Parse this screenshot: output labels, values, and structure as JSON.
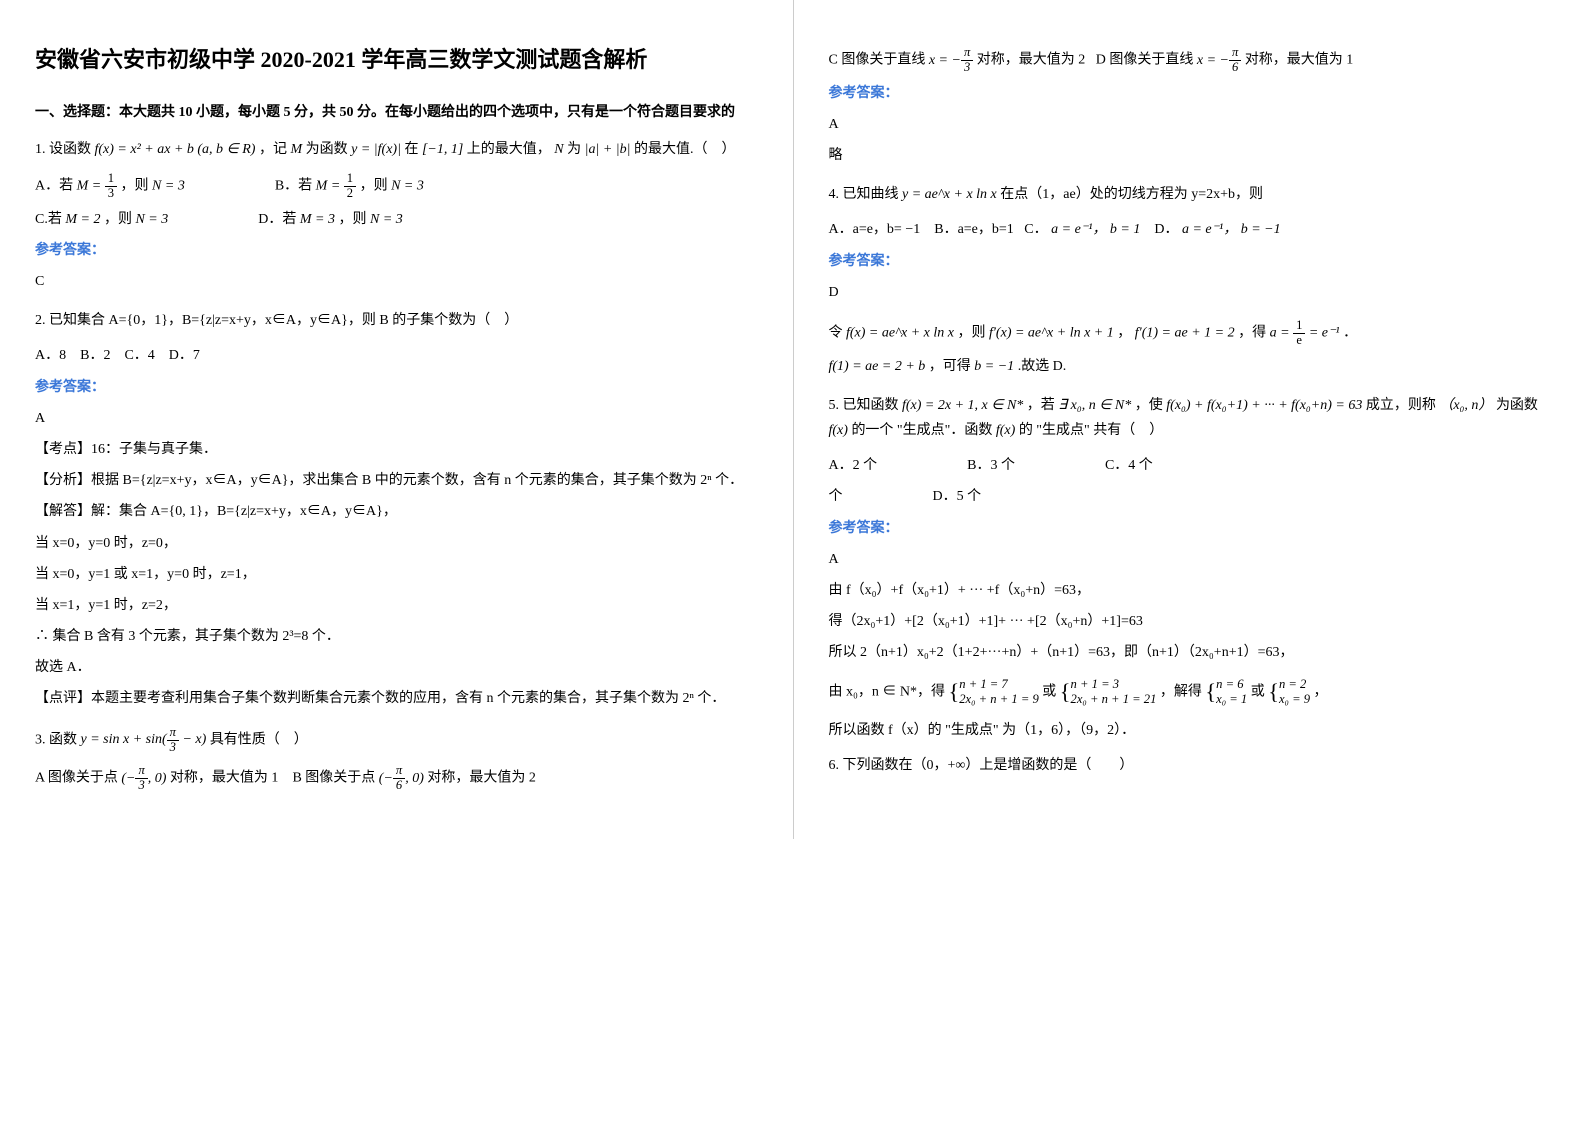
{
  "title": "安徽省六安市初级中学 2020-2021 学年高三数学文测试题含解析",
  "section1_head": "一、选择题：本大题共 10 小题，每小题 5 分，共 50 分。在每小题给出的四个选项中，只有是一个符合题目要求的",
  "q1": {
    "stem_pre": "1. 设函数",
    "fx": "f(x) = x² + ax + b (a, b ∈ R)",
    "stem_mid": "，记",
    "M": "M",
    "stem_mid2": " 为函数",
    "yfx": "y = |f(x)|",
    "stem_mid3": " 在",
    "interval": "[−1, 1]",
    "stem_mid4": " 上的最大值，",
    "N": "N",
    "stem_mid5": " 为",
    "ab": "|a| + |b|",
    "stem_end": " 的最大值.（　）",
    "optA_pre": "A．若",
    "optA_l": "M = ",
    "optA_num": "1",
    "optA_den": "3",
    "optA_r": "，则",
    "optA_N": "N = 3",
    "optB_pre": "B．若",
    "optB_l": "M = ",
    "optB_num": "1",
    "optB_den": "2",
    "optB_r": "，则",
    "optB_N": "N = 3",
    "optC_pre": "C.若",
    "optC_M": "M = 2",
    "optC_r": "，则",
    "optC_N": "N = 3",
    "optD_pre": "D．若",
    "optD_M": "M = 3",
    "optD_r": "，则",
    "optD_N": "N = 3",
    "answer": "C"
  },
  "q2": {
    "stem": "2. 已知集合 A={0，1}，B={z|z=x+y，x∈A，y∈A}，则 B 的子集个数为（　）",
    "opts": "A．8　B．2　C．4　D．7",
    "answer": "A",
    "kd": "【考点】16：子集与真子集．",
    "fx": "【分析】根据 B={z|z=x+y，x∈A，y∈A}，求出集合 B 中的元素个数，含有 n 个元素的集合，其子集个数为 2ⁿ 个．",
    "jd1": "【解答】解：集合 A={0, 1}，B={z|z=x+y，x∈A，y∈A}，",
    "jd2": "当 x=0，y=0 时，z=0，",
    "jd3": "当 x=0，y=1 或 x=1，y=0 时，z=1，",
    "jd4": "当 x=1，y=1 时，z=2，",
    "jd5": "∴ 集合 B 含有 3 个元素，其子集个数为 2³=8 个．",
    "jd6": "故选 A．",
    "dp": "【点评】本题主要考查利用集合子集个数判断集合元素个数的应用，含有 n 个元素的集合，其子集个数为 2ⁿ 个．"
  },
  "q3": {
    "stem_pre": "3. 函数",
    "y": "y = sin x + sin(",
    "pi_num": "π",
    "pi_den": "3",
    "y_end": " − x)",
    "stem_end": "具有性质（　）",
    "optA_pre": "A  图像关于点",
    "optA_pt": "(−",
    "optA_num": "π",
    "optA_den": "3",
    "optA_pt_end": ", 0)",
    "optA_end": " 对称，最大值为 1",
    "optB_pre": "B  图像关于点",
    "optB_pt": "(−",
    "optB_num": "π",
    "optB_den": "6",
    "optB_pt_end": ", 0)",
    "optB_end": " 对称，最大值为 2",
    "optC_pre": "C  图像关于直线",
    "optC_x": "x = −",
    "optC_num": "π",
    "optC_den": "3",
    "optC_end": " 对称，最大值为 2",
    "optD_pre": "D  图像关于直线",
    "optD_x": "x = −",
    "optD_num": "π",
    "optD_den": "6",
    "optD_end": " 对称，最大值为 1",
    "answer": "A",
    "lue": "略"
  },
  "q4": {
    "stem_pre": "4. 已知曲线",
    "y": "y = ae^x + x ln x",
    "stem_mid": " 在点（1，ae）处的切线方程为 y=2x+b，则",
    "optA": "A．a=e，b= −1",
    "optB": "B．a=e，b=1",
    "optC_pre": "C．",
    "optC_a": "a = e⁻¹，",
    "optC_b": "b = 1",
    "optD_pre": "D．",
    "optD_a": "a = e⁻¹，",
    "optD_b": "b = −1",
    "answer": "D",
    "sol1_pre": "令",
    "sol1_fx": "f(x) = ae^x + x ln x",
    "sol1_mid": "，则",
    "sol1_fpx": "f′(x) = ae^x + ln x + 1",
    "sol1_mid2": "，",
    "sol1_fp1": "f′(1) = ae + 1 = 2",
    "sol1_mid3": "，得",
    "sol1_a": "a = ",
    "sol1_a_num": "1",
    "sol1_a_den": "e",
    "sol1_a_eq": " = e⁻¹",
    "sol1_end": "．",
    "sol2_l": "f(1) = ae = 2 + b",
    "sol2_mid": "，可得",
    "sol2_b": "b = −1",
    "sol2_end": ".故选 D."
  },
  "q5": {
    "stem_pre": "5. 已知函数",
    "fx": "f(x) = 2x + 1, x ∈ N*",
    "stem_mid": "，若",
    "cond": "∃ x₀, n ∈ N*",
    "stem_mid2": "，使",
    "sum": "f(x₀) + f(x₀+1) + ··· + f(x₀+n) = 63",
    "stem_mid3": " 成立，则称",
    "pair": "（x₀, n）",
    "stem_mid4": " 为函数",
    "fxlbl": "f(x)",
    "stem_mid5": " 的一个 \"生成点\"．函数",
    "fxlbl2": "f(x)",
    "stem_mid6": " 的 \"生成点\" 共有（　）",
    "optA": "A．2 个",
    "optB": "B．3 个",
    "optC": "C．4 个",
    "optD": "D．5 个",
    "answer": "A",
    "s1": "由 f（x₀）+f（x₀+1）+ ··· +f（x₀+n）=63，",
    "s2": "得（2x₀+1）+[2（x₀+1）+1]+ ··· +[2（x₀+n）+1]=63",
    "s3": "所以 2（n+1）x₀+2（1+2+···+n）+（n+1）=63，即（n+1）（2x₀+n+1）=63，",
    "s4_pre": "由 x₀，n ∈ N*，得",
    "s4_sys1_top": "n + 1 = 7",
    "s4_sys1_bot": "2x₀ + n + 1 = 9",
    "s4_or1": "或",
    "s4_sys2_top": "n + 1 = 3",
    "s4_sys2_bot": "2x₀ + n + 1 = 21",
    "s4_mid": "，解得",
    "s4_sys3_top": "n = 6",
    "s4_sys3_bot": "x₀ = 1",
    "s4_or2": "或",
    "s4_sys4_top": "n = 2",
    "s4_sys4_bot": "x₀ = 9",
    "s4_end": "，",
    "s5": "所以函数 f（x）的 \"生成点\" 为（1，6），（9，2）．"
  },
  "q6": {
    "stem": "6. 下列函数在（0，+∞）上是增函数的是（　　）"
  },
  "labels": {
    "ref_answer": "参考答案：",
    "opt_label": "个"
  }
}
